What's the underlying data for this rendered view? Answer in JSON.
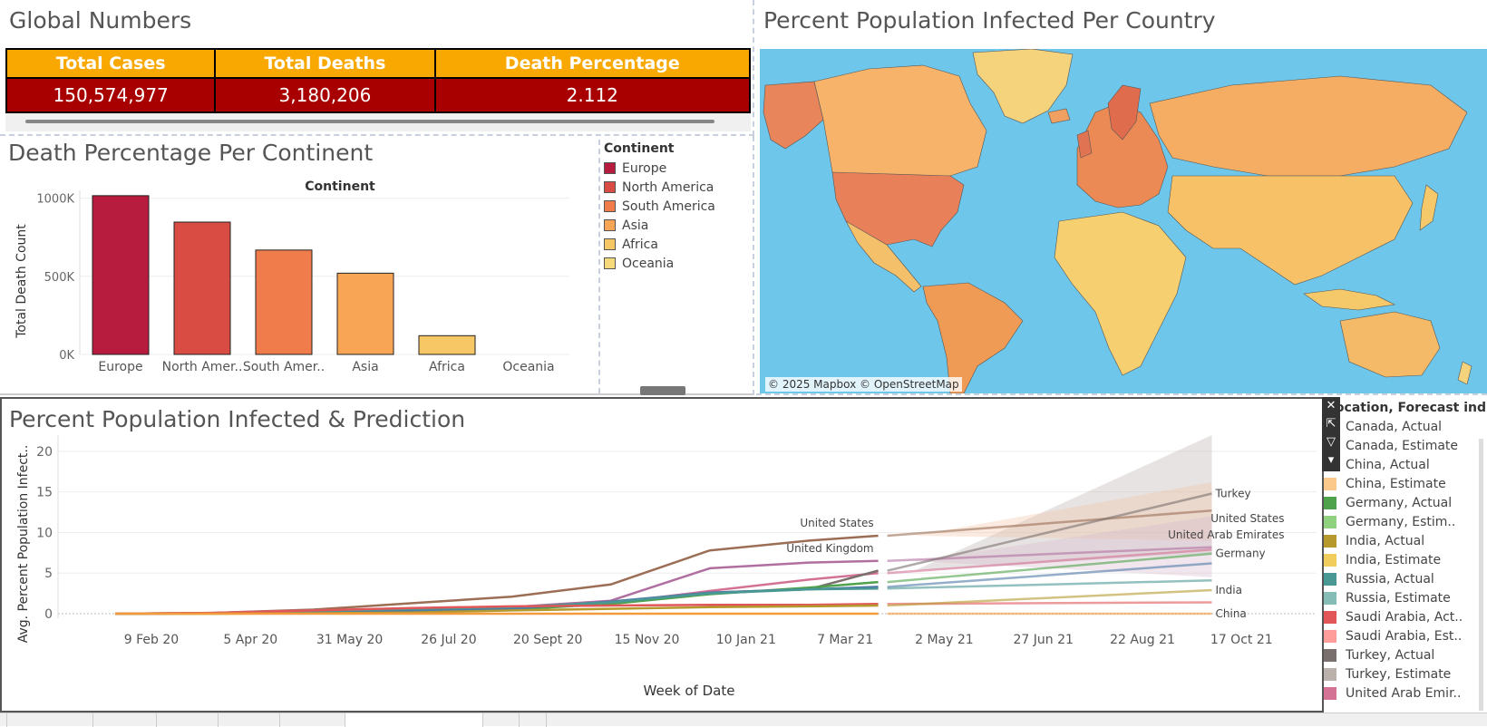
{
  "global": {
    "title": "Global Numbers",
    "headers": [
      "Total Cases",
      "Total Deaths",
      "Death Percentage"
    ],
    "values": [
      "150,574,977",
      "3,180,206",
      "2.112"
    ]
  },
  "continent": {
    "title": "Death Percentage Per Continent",
    "legend_title": "Continent",
    "legend": [
      {
        "label": "Europe",
        "color": "#b71c3f"
      },
      {
        "label": "North America",
        "color": "#d84c43"
      },
      {
        "label": "South America",
        "color": "#ef7c4a"
      },
      {
        "label": "Asia",
        "color": "#f8a656"
      },
      {
        "label": "Africa",
        "color": "#f6c764"
      },
      {
        "label": "Oceania",
        "color": "#f5d97a"
      }
    ]
  },
  "map": {
    "title": "Percent Population Infected Per Country",
    "credit": "© 2025 Mapbox © OpenStreetMap"
  },
  "prediction": {
    "title": "Percent Population Infected & Prediction",
    "legend_title": "Location, Forecast indic..",
    "legend": [
      {
        "label": "Canada, Actual",
        "color": "#e8a27a"
      },
      {
        "label": "Canada, Estimate",
        "color": "#f2c2a5"
      },
      {
        "label": "China, Actual",
        "color": "#f39b3c"
      },
      {
        "label": "China, Estimate",
        "color": "#fbc98c"
      },
      {
        "label": "Germany, Actual",
        "color": "#4ea24b"
      },
      {
        "label": "Germany, Estim..",
        "color": "#8fd17f"
      },
      {
        "label": "India, Actual",
        "color": "#b6992d"
      },
      {
        "label": "India, Estimate",
        "color": "#f1cd5d"
      },
      {
        "label": "Russia, Actual",
        "color": "#499894"
      },
      {
        "label": "Russia, Estimate",
        "color": "#86bcb6"
      },
      {
        "label": "Saudi Arabia, Act..",
        "color": "#e15759"
      },
      {
        "label": "Saudi Arabia, Est..",
        "color": "#ff9d9a"
      },
      {
        "label": "Turkey, Actual",
        "color": "#79706e"
      },
      {
        "label": "Turkey, Estimate",
        "color": "#bab0ac"
      },
      {
        "label": "United Arab Emir..",
        "color": "#d37295"
      }
    ]
  },
  "chart_data": [
    {
      "type": "bar",
      "title": "Continent",
      "xlabel": "",
      "ylabel": "Total Death Count",
      "categories": [
        "Europe",
        "North Amer..",
        "South Amer..",
        "Asia",
        "Africa",
        "Oceania"
      ],
      "values": [
        1016000,
        847000,
        668000,
        520000,
        120000,
        1000
      ],
      "colors": [
        "#b71c3f",
        "#d84c43",
        "#ef7c4a",
        "#f8a656",
        "#f6c764",
        "#f5d97a"
      ],
      "ylim": [
        0,
        1050000
      ],
      "yticks": [
        {
          "v": 0,
          "label": "0K"
        },
        {
          "v": 500000,
          "label": "500K"
        },
        {
          "v": 1000000,
          "label": "1000K"
        }
      ],
      "grid": true
    },
    {
      "type": "line",
      "xlabel": "Week of Date",
      "ylabel": "Avg. Percent Population Infect..",
      "xticks": [
        "9 Feb 20",
        "5 Apr 20",
        "31 May 20",
        "26 Jul 20",
        "20 Sept 20",
        "15 Nov 20",
        "10 Jan 21",
        "7 Mar 21",
        "2 May 21",
        "27 Jun 21",
        "22 Aug 21",
        "17 Oct 21"
      ],
      "ylim": [
        0,
        22
      ],
      "yticks": [
        0,
        5,
        10,
        15,
        20
      ],
      "grid": true,
      "actual_x": [
        0,
        1,
        2,
        3,
        4,
        5,
        6,
        7,
        7.7
      ],
      "estimate_x": [
        7.7,
        10.7
      ],
      "series": [
        {
          "name": "United States",
          "color": "#9b6e55",
          "actual": [
            0,
            0.1,
            0.5,
            1.3,
            2.1,
            3.6,
            7.8,
            9.0,
            9.6
          ],
          "estimate": [
            9.6,
            12.7
          ]
        },
        {
          "name": "United Kingdom",
          "color": "#b06fa0",
          "actual": [
            0,
            0.1,
            0.4,
            0.5,
            0.8,
            1.6,
            5.6,
            6.3,
            6.5
          ],
          "estimate": [
            6.5,
            8.2
          ]
        },
        {
          "name": "",
          "color": "#d37295",
          "actual": [
            0,
            0.05,
            0.3,
            0.6,
            0.8,
            1.3,
            2.8,
            4.2,
            5.0
          ],
          "estimate": [
            5.0,
            7.9
          ]
        },
        {
          "name": "",
          "color": "#79706e",
          "actual": [
            0,
            0.05,
            0.2,
            0.4,
            0.6,
            1.3,
            2.6,
            3.0,
            5.3
          ],
          "estimate": [
            5.3,
            14.8
          ]
        },
        {
          "name": "",
          "color": "#4ea24b",
          "actual": [
            0,
            0.05,
            0.2,
            0.3,
            0.5,
            1.2,
            2.4,
            3.2,
            3.9
          ],
          "estimate": [
            3.9,
            7.4
          ]
        },
        {
          "name": "",
          "color": "#4e79a7",
          "actual": [
            0,
            0.05,
            0.2,
            0.3,
            0.6,
            1.5,
            2.6,
            3.0,
            3.3
          ],
          "estimate": [
            3.3,
            6.2
          ]
        },
        {
          "name": "",
          "color": "#499894",
          "actual": [
            0,
            0.05,
            0.3,
            0.6,
            0.8,
            1.4,
            2.5,
            3.0,
            3.1
          ],
          "estimate": [
            3.1,
            4.1
          ]
        },
        {
          "name": "",
          "color": "#e15759",
          "actual": [
            0,
            0.1,
            0.4,
            0.7,
            0.9,
            1.0,
            1.1,
            1.1,
            1.2
          ],
          "estimate": [
            1.2,
            1.4
          ]
        },
        {
          "name": "",
          "color": "#b6992d",
          "actual": [
            0,
            0,
            0.05,
            0.15,
            0.4,
            0.6,
            0.8,
            0.9,
            1.0
          ],
          "estimate": [
            1.0,
            2.9
          ]
        },
        {
          "name": "",
          "color": "#f39b3c",
          "actual": [
            0,
            0,
            0,
            0,
            0,
            0,
            0,
            0,
            0
          ],
          "estimate": [
            0,
            0
          ]
        }
      ],
      "bands": [
        {
          "color": "#bab0ac",
          "lower": [
            5.3,
            7.5
          ],
          "upper": [
            5.3,
            22
          ]
        },
        {
          "color": "#f2c2a5",
          "lower": [
            9.6,
            9.0
          ],
          "upper": [
            9.6,
            16.2
          ]
        },
        {
          "color": "#d8b8cc",
          "lower": [
            6.5,
            4.5
          ],
          "upper": [
            6.5,
            12.0
          ]
        }
      ],
      "end_labels": [
        {
          "text": "Turkey",
          "y": 14.8
        },
        {
          "text": "United States",
          "y": 11.7
        },
        {
          "text": "United Arab Emirates",
          "y": 9.7
        },
        {
          "text": "Germany",
          "y": 7.4
        },
        {
          "text": "India",
          "y": 2.9
        },
        {
          "text": "China",
          "y": 0
        }
      ]
    }
  ]
}
